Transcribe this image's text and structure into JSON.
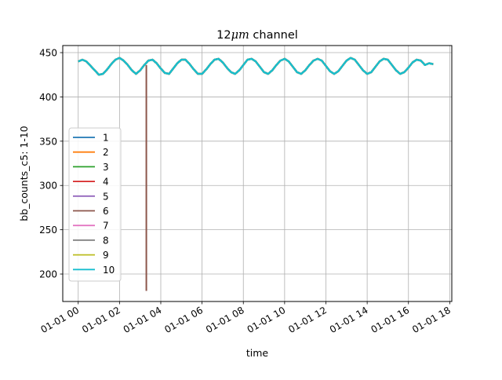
{
  "chart_data": {
    "type": "line",
    "title_prefix": "12",
    "title_mu": "μm",
    "title_suffix": " channel",
    "xlabel": "time",
    "ylabel": "bb_counts_c5: 1-10",
    "x_tick_labels": [
      "01-01 00",
      "01-01 02",
      "01-01 04",
      "01-01 06",
      "01-01 08",
      "01-01 10",
      "01-01 12",
      "01-01 14",
      "01-01 16",
      "01-01 18"
    ],
    "x_tick_hours": [
      0,
      2,
      4,
      6,
      8,
      10,
      12,
      14,
      16,
      18
    ],
    "xlim_hours": [
      -0.75,
      18.1
    ],
    "y_ticks": [
      200,
      250,
      300,
      350,
      400,
      450
    ],
    "ylim": [
      169,
      458
    ],
    "grid": true,
    "legend_position": "center-left",
    "series": [
      {
        "name": "1",
        "color": "#1f77b4"
      },
      {
        "name": "2",
        "color": "#ff7f0e"
      },
      {
        "name": "3",
        "color": "#2ca02c"
      },
      {
        "name": "4",
        "color": "#d62728"
      },
      {
        "name": "5",
        "color": "#9467bd"
      },
      {
        "name": "6",
        "color": "#8c564b"
      },
      {
        "name": "7",
        "color": "#e377c2"
      },
      {
        "name": "8",
        "color": "#7f7f7f"
      },
      {
        "name": "9",
        "color": "#bcbd22"
      },
      {
        "name": "10",
        "color": "#17becf"
      }
    ],
    "main_signal": {
      "x_hours": [
        0.0,
        0.2,
        0.4,
        0.6,
        0.8,
        1.0,
        1.2,
        1.4,
        1.6,
        1.8,
        2.0,
        2.2,
        2.4,
        2.6,
        2.8,
        3.0,
        3.2,
        3.4,
        3.6,
        3.8,
        4.0,
        4.2,
        4.4,
        4.6,
        4.8,
        5.0,
        5.2,
        5.4,
        5.6,
        5.8,
        6.0,
        6.2,
        6.4,
        6.6,
        6.8,
        7.0,
        7.2,
        7.4,
        7.6,
        7.8,
        8.0,
        8.2,
        8.4,
        8.6,
        8.8,
        9.0,
        9.2,
        9.4,
        9.6,
        9.8,
        10.0,
        10.2,
        10.4,
        10.6,
        10.8,
        11.0,
        11.2,
        11.4,
        11.6,
        11.8,
        12.0,
        12.2,
        12.4,
        12.6,
        12.8,
        13.0,
        13.2,
        13.4,
        13.6,
        13.8,
        14.0,
        14.2,
        14.4,
        14.6,
        14.8,
        15.0,
        15.2,
        15.4,
        15.6,
        15.8,
        16.0,
        16.2,
        16.4,
        16.6,
        16.8,
        17.0,
        17.2
      ],
      "y": [
        440,
        442,
        440,
        435,
        430,
        425,
        426,
        431,
        437,
        442,
        444,
        441,
        436,
        430,
        426,
        430,
        436,
        441,
        442,
        438,
        432,
        427,
        426,
        432,
        438,
        442,
        442,
        437,
        431,
        426,
        426,
        431,
        437,
        442,
        443,
        439,
        433,
        428,
        426,
        430,
        436,
        442,
        443,
        440,
        434,
        428,
        426,
        430,
        436,
        441,
        443,
        440,
        434,
        428,
        426,
        430,
        436,
        441,
        443,
        441,
        435,
        429,
        426,
        429,
        435,
        441,
        444,
        442,
        436,
        430,
        426,
        428,
        434,
        440,
        443,
        442,
        436,
        430,
        426,
        428,
        433,
        439,
        442,
        441,
        436,
        438,
        437
      ]
    },
    "drop_series": {
      "name": "6",
      "x_hours": 3.3,
      "y_range": [
        181,
        436
      ]
    },
    "line_width": 2
  }
}
